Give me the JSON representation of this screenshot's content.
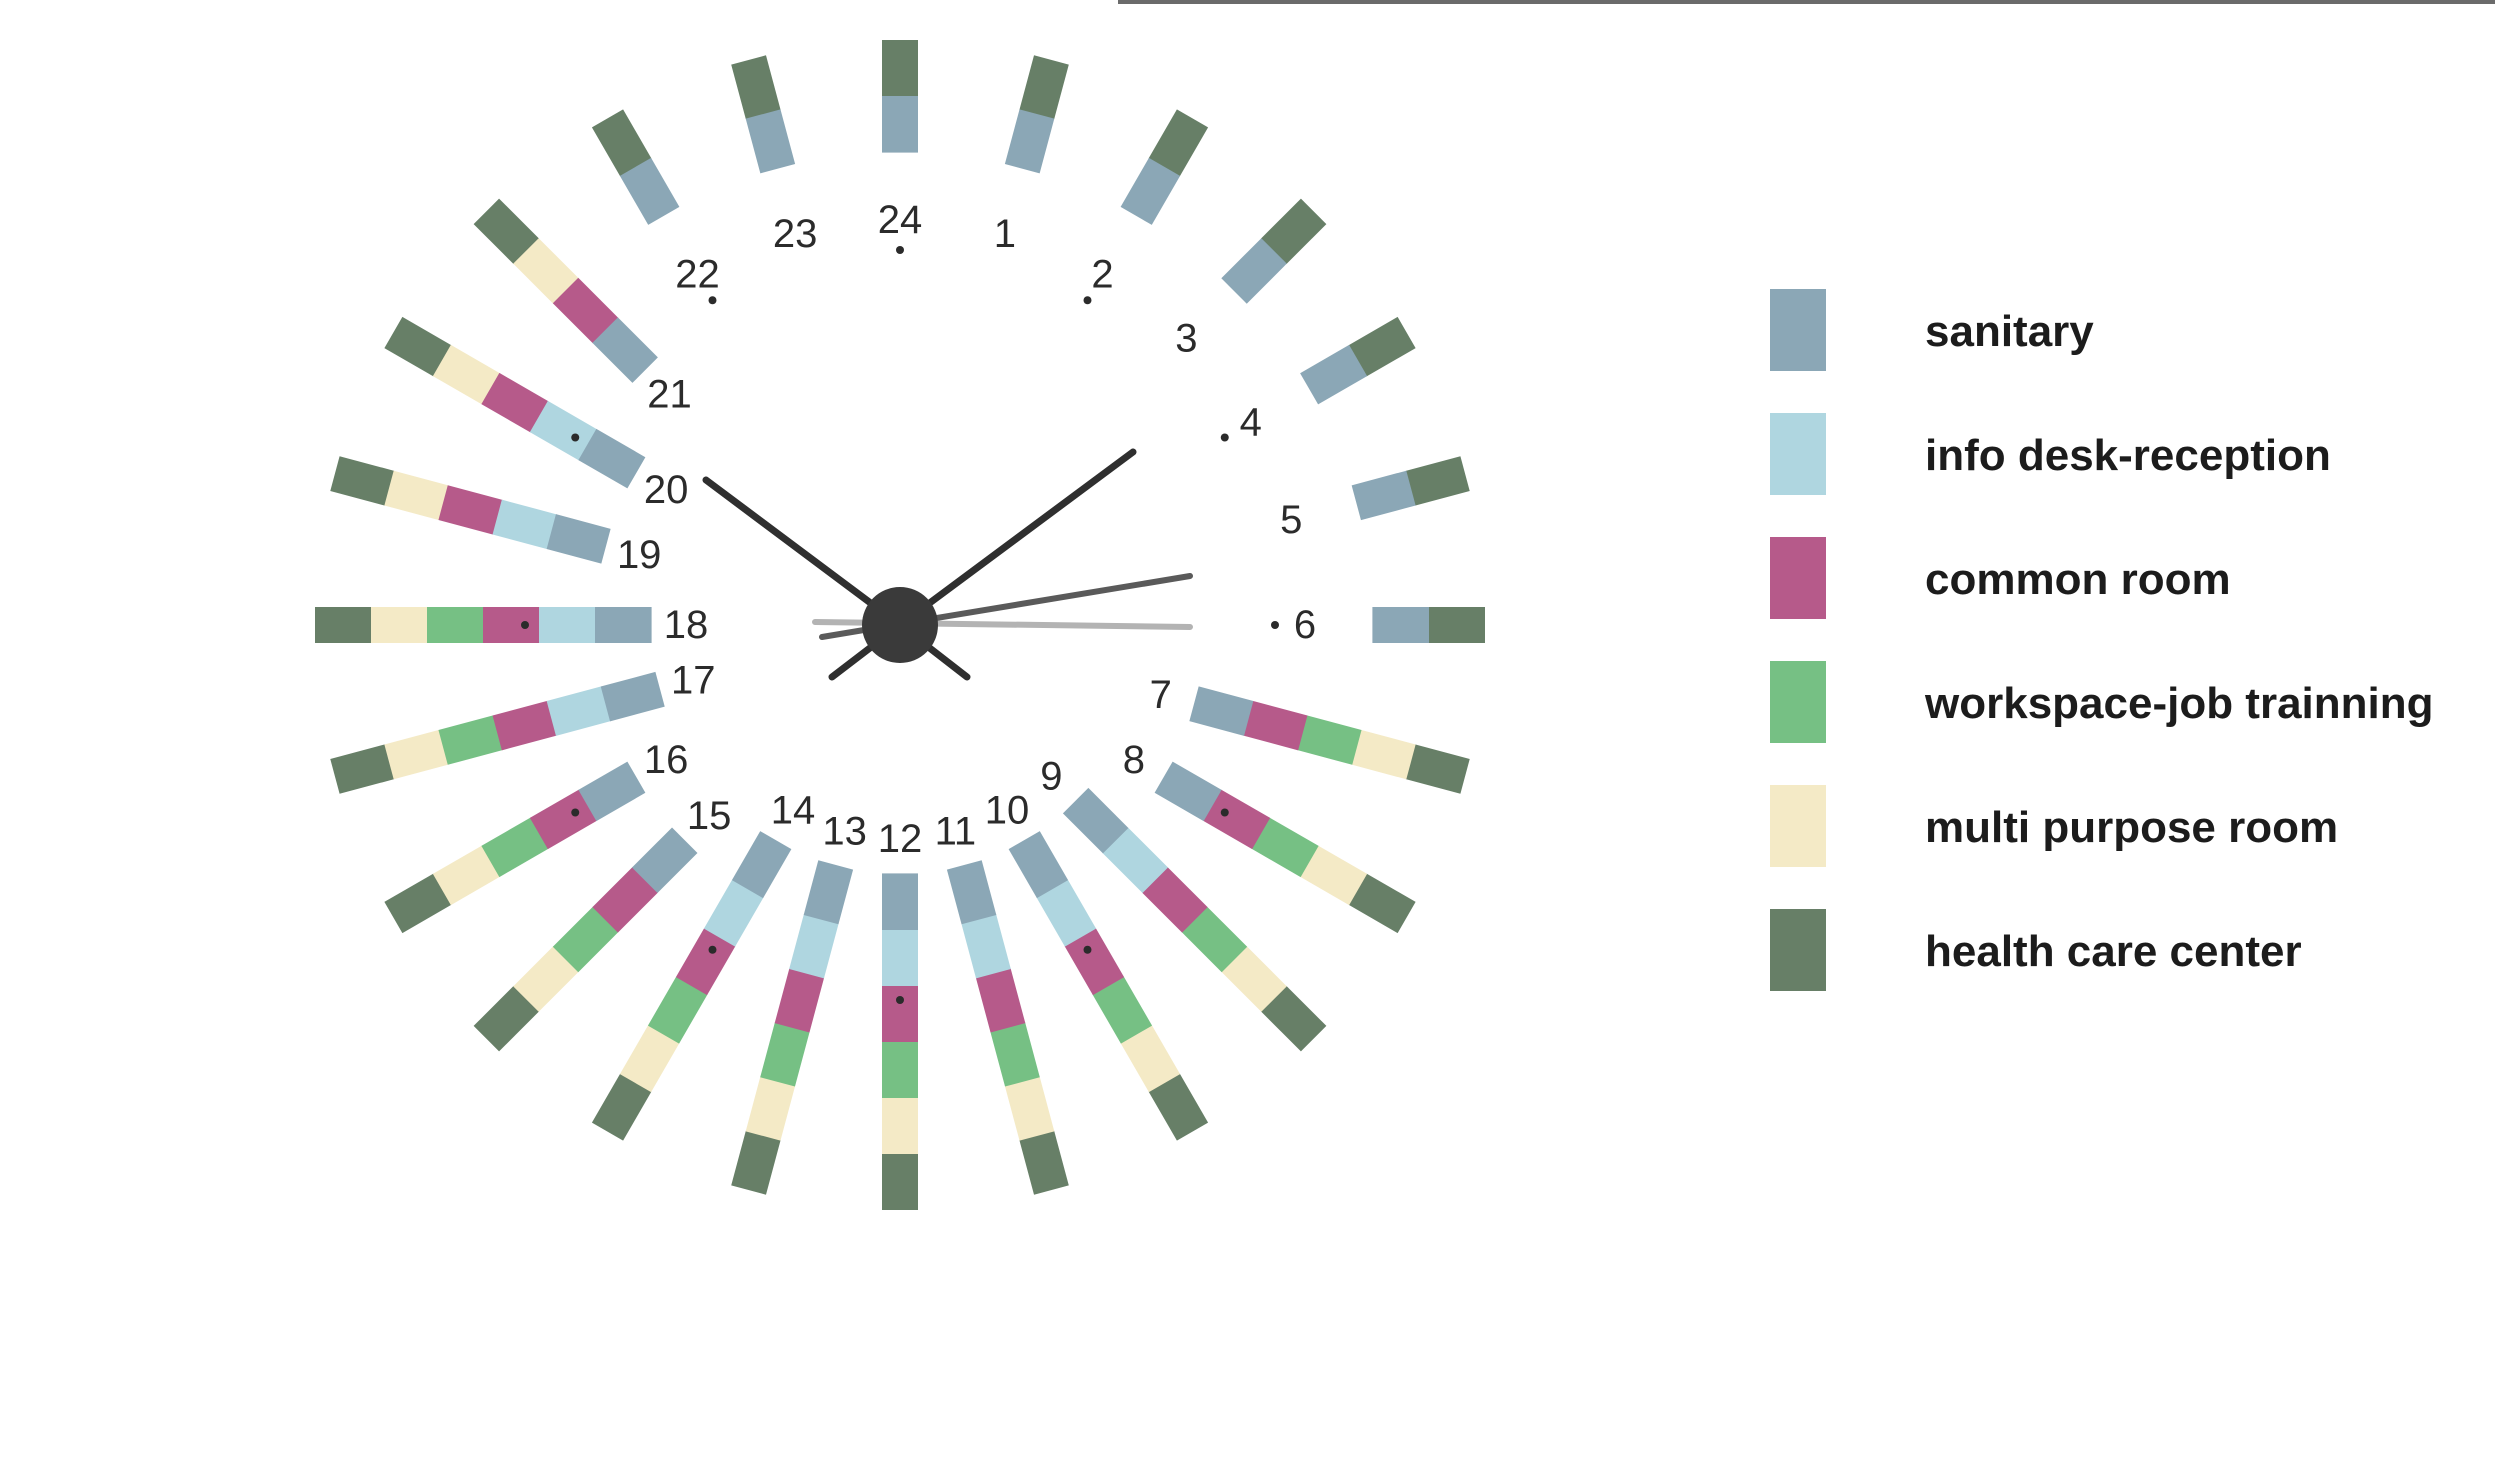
{
  "legend": [
    {
      "key": "sanitary",
      "label": "sanitary",
      "color": "#8ba7b6"
    },
    {
      "key": "info",
      "label": "info desk-reception",
      "color": "#afd6e0"
    },
    {
      "key": "common",
      "label": "common room",
      "color": "#b65a8a"
    },
    {
      "key": "workspace",
      "label": "workspace-job trainning",
      "color": "#76c084"
    },
    {
      "key": "multi",
      "label": "multi purpose room",
      "color": "#f4eac6"
    },
    {
      "key": "health",
      "label": "health care center",
      "color": "#677f67"
    }
  ],
  "hours": [
    {
      "label": "24",
      "segments": [
        "health",
        "sanitary"
      ]
    },
    {
      "label": "1",
      "segments": [
        "health",
        "sanitary"
      ]
    },
    {
      "label": "2",
      "segments": [
        "health",
        "sanitary"
      ]
    },
    {
      "label": "3",
      "segments": [
        "health",
        "sanitary"
      ]
    },
    {
      "label": "4",
      "segments": [
        "health",
        "sanitary"
      ]
    },
    {
      "label": "5",
      "segments": [
        "health",
        "sanitary"
      ]
    },
    {
      "label": "6",
      "segments": [
        "health",
        "sanitary"
      ]
    },
    {
      "label": "7",
      "segments": [
        "health",
        "multi",
        "workspace",
        "common",
        "sanitary"
      ]
    },
    {
      "label": "8",
      "segments": [
        "health",
        "multi",
        "workspace",
        "common",
        "sanitary"
      ]
    },
    {
      "label": "9",
      "segments": [
        "health",
        "multi",
        "workspace",
        "common",
        "info",
        "sanitary"
      ]
    },
    {
      "label": "10",
      "segments": [
        "health",
        "multi",
        "workspace",
        "common",
        "info",
        "sanitary"
      ]
    },
    {
      "label": "11",
      "segments": [
        "health",
        "multi",
        "workspace",
        "common",
        "info",
        "sanitary"
      ]
    },
    {
      "label": "12",
      "segments": [
        "health",
        "multi",
        "workspace",
        "common",
        "info",
        "sanitary"
      ]
    },
    {
      "label": "13",
      "segments": [
        "health",
        "multi",
        "workspace",
        "common",
        "info",
        "sanitary"
      ]
    },
    {
      "label": "14",
      "segments": [
        "health",
        "multi",
        "workspace",
        "common",
        "info",
        "sanitary"
      ]
    },
    {
      "label": "15",
      "segments": [
        "health",
        "multi",
        "workspace",
        "common",
        "sanitary"
      ]
    },
    {
      "label": "16",
      "segments": [
        "health",
        "multi",
        "workspace",
        "common",
        "sanitary"
      ]
    },
    {
      "label": "17",
      "segments": [
        "health",
        "multi",
        "workspace",
        "common",
        "info",
        "sanitary"
      ]
    },
    {
      "label": "18",
      "segments": [
        "health",
        "multi",
        "workspace",
        "common",
        "info",
        "sanitary"
      ]
    },
    {
      "label": "19",
      "segments": [
        "health",
        "multi",
        "common",
        "info",
        "sanitary"
      ]
    },
    {
      "label": "20",
      "segments": [
        "health",
        "multi",
        "common",
        "info",
        "sanitary"
      ]
    },
    {
      "label": "21",
      "segments": [
        "health",
        "multi",
        "common",
        "sanitary"
      ]
    },
    {
      "label": "22",
      "segments": [
        "health",
        "sanitary"
      ]
    },
    {
      "label": "23",
      "segments": [
        "health",
        "sanitary"
      ]
    }
  ],
  "colors": {
    "hand": "#2f2f2f",
    "second_hand_dark": "#5a5a5a",
    "second_hand_light": "#b3b3b3",
    "hub": "#3a3a3a",
    "text": "#2b2b2b"
  }
}
